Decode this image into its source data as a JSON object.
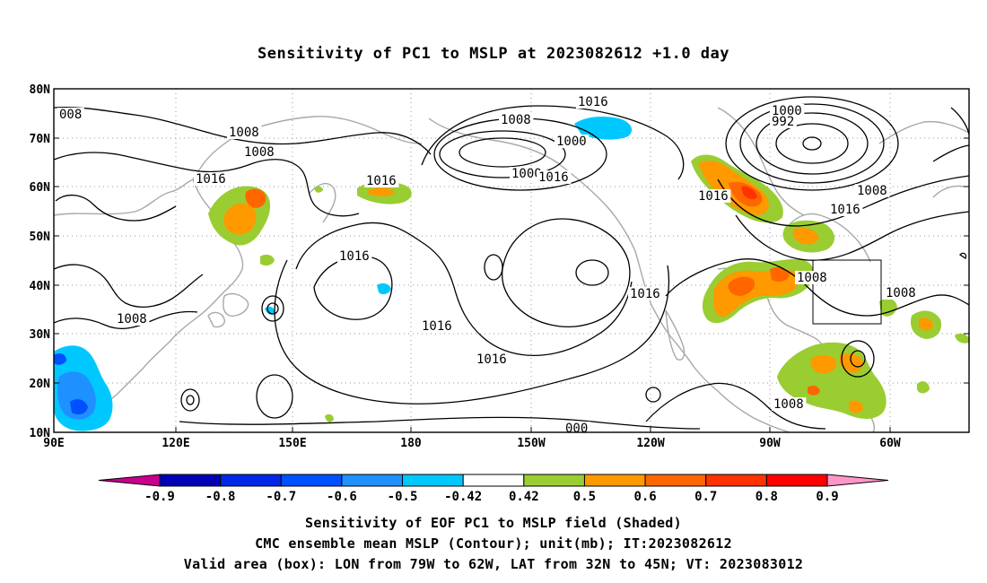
{
  "title": "Sensitivity of PC1 to MSLP at 2023082612 +1.0 day",
  "map": {
    "lat_labels": [
      "80N",
      "70N",
      "60N",
      "50N",
      "40N",
      "30N",
      "20N",
      "10N"
    ],
    "lon_labels": [
      "90E",
      "120E",
      "150E",
      "180",
      "150W",
      "120W",
      "90W",
      "60W"
    ],
    "contour_labels": [
      {
        "text": "008"
      },
      {
        "text": "1008"
      },
      {
        "text": "1008"
      },
      {
        "text": "1016"
      },
      {
        "text": "1008"
      },
      {
        "text": "1016"
      },
      {
        "text": "1008"
      },
      {
        "text": "1000"
      },
      {
        "text": "1000"
      },
      {
        "text": "1016"
      },
      {
        "text": "1000"
      },
      {
        "text": "992"
      },
      {
        "text": "1008"
      },
      {
        "text": "1016"
      },
      {
        "text": "1016"
      },
      {
        "text": "1016"
      },
      {
        "text": "1016"
      },
      {
        "text": "1016"
      },
      {
        "text": "1016"
      },
      {
        "text": "1016"
      },
      {
        "text": "1008"
      },
      {
        "text": "1008"
      },
      {
        "text": "1008"
      },
      {
        "text": "000"
      }
    ],
    "valid_box": {
      "lon_west": "79W",
      "lon_east": "62W",
      "lat_south": "32N",
      "lat_north": "45N"
    }
  },
  "colorbar": {
    "labels": [
      "-0.9",
      "-0.8",
      "-0.7",
      "-0.6",
      "-0.5",
      "-0.42",
      "0.42",
      "0.5",
      "0.6",
      "0.7",
      "0.8",
      "0.9"
    ],
    "colors": [
      "#0000b4",
      "#0028e6",
      "#0050ff",
      "#1e90ff",
      "#00c8ff",
      "#ffffff",
      "#9acd32",
      "#ff9900",
      "#ff6600",
      "#ff3300",
      "#ff0000"
    ],
    "low_extend_color": "#c8008c",
    "high_extend_color": "#ff96c8"
  },
  "footer": {
    "line1": "Sensitivity of EOF PC1 to MSLP field (Shaded)",
    "line2": "CMC ensemble mean MSLP (Contour); unit(mb); IT:2023082612",
    "line3": "Valid area (box): LON from 79W to 62W, LAT from 32N to 45N; VT: 2023083012"
  }
}
